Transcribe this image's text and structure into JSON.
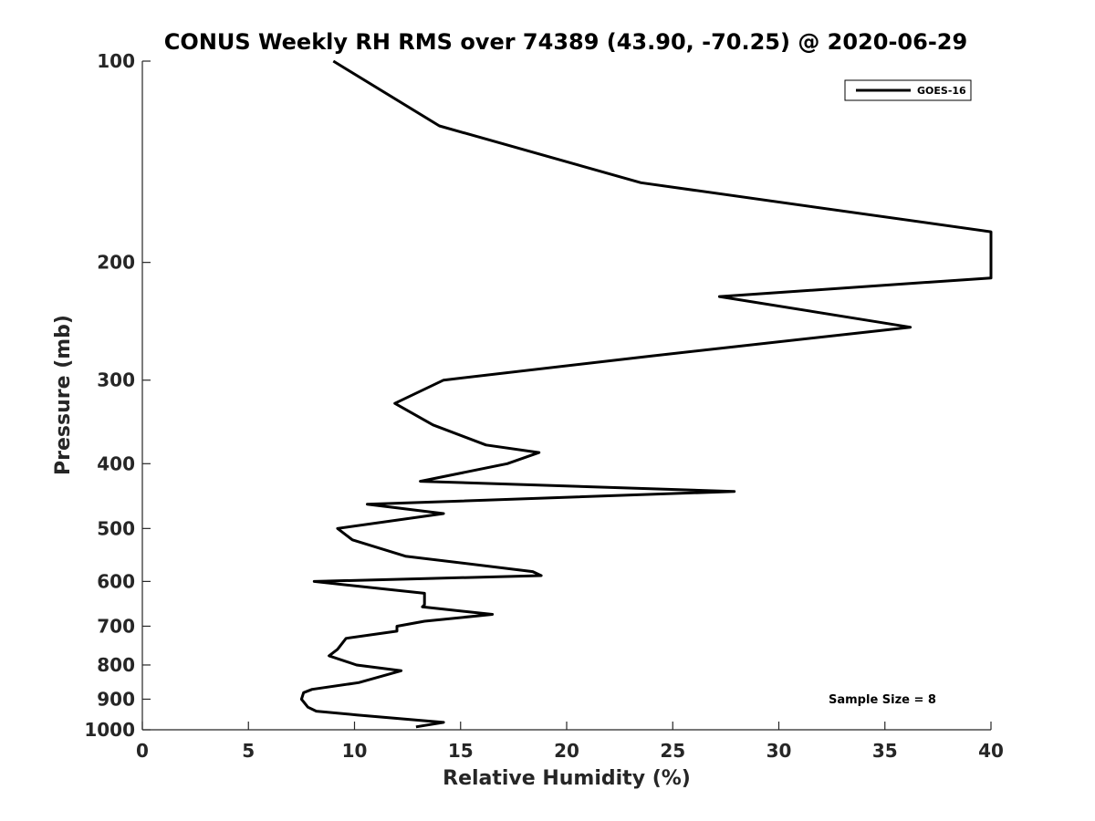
{
  "chart_data": {
    "type": "line",
    "title": "CONUS Weekly RH RMS over 74389 (43.90, -70.25) @ 2020-06-29",
    "xlabel": "Relative Humidity (%)",
    "ylabel": "Pressure (mb)",
    "xlim": [
      0,
      40
    ],
    "ylim": [
      100,
      1000
    ],
    "y_scale": "log",
    "y_reversed": true,
    "x_ticks": [
      0,
      5,
      10,
      15,
      20,
      25,
      30,
      35,
      40
    ],
    "y_ticks": [
      100,
      200,
      300,
      400,
      500,
      600,
      700,
      800,
      900,
      1000
    ],
    "grid": false,
    "legend_position": "top-right",
    "series": [
      {
        "name": "GOES-16",
        "color": "#000000",
        "points": [
          [
            9.0,
            100
          ],
          [
            14.0,
            125
          ],
          [
            23.5,
            152
          ],
          [
            40.0,
            180
          ],
          [
            40.0,
            211
          ],
          [
            27.2,
            225
          ],
          [
            36.2,
            250
          ],
          [
            24.0,
            276
          ],
          [
            14.2,
            300
          ],
          [
            11.9,
            325
          ],
          [
            13.7,
            350
          ],
          [
            16.2,
            375
          ],
          [
            18.7,
            385
          ],
          [
            17.2,
            400
          ],
          [
            13.1,
            425
          ],
          [
            27.9,
            440
          ],
          [
            10.6,
            460
          ],
          [
            14.2,
            475
          ],
          [
            9.2,
            500
          ],
          [
            9.9,
            520
          ],
          [
            12.4,
            550
          ],
          [
            18.4,
            580
          ],
          [
            18.8,
            588
          ],
          [
            8.1,
            600
          ],
          [
            13.3,
            625
          ],
          [
            13.3,
            650
          ],
          [
            13.2,
            655
          ],
          [
            16.5,
            672
          ],
          [
            13.3,
            688
          ],
          [
            12.0,
            700
          ],
          [
            12.0,
            712
          ],
          [
            9.6,
            730
          ],
          [
            9.2,
            758
          ],
          [
            8.8,
            775
          ],
          [
            10.1,
            800
          ],
          [
            12.2,
            816
          ],
          [
            10.2,
            850
          ],
          [
            8.0,
            870
          ],
          [
            7.6,
            880
          ],
          [
            7.5,
            900
          ],
          [
            7.8,
            925
          ],
          [
            8.2,
            938
          ],
          [
            10.1,
            950
          ],
          [
            14.2,
            975
          ],
          [
            12.9,
            990
          ]
        ]
      }
    ],
    "annotation": "Sample Size = 8"
  }
}
